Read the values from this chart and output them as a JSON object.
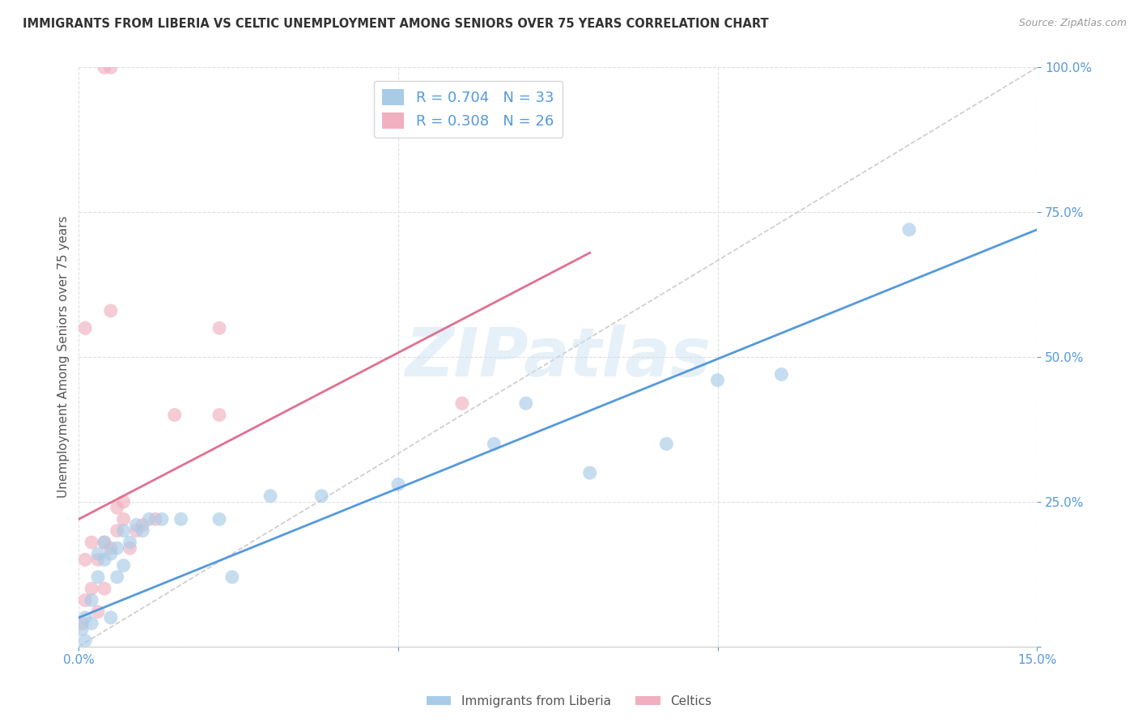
{
  "title": "IMMIGRANTS FROM LIBERIA VS CELTIC UNEMPLOYMENT AMONG SENIORS OVER 75 YEARS CORRELATION CHART",
  "source": "Source: ZipAtlas.com",
  "ylabel": "Unemployment Among Seniors over 75 years",
  "legend_label_blue": "Immigrants from Liberia",
  "legend_label_pink": "Celtics",
  "R_blue": 0.704,
  "N_blue": 33,
  "R_pink": 0.308,
  "N_pink": 26,
  "xlim": [
    0,
    0.15
  ],
  "ylim": [
    0,
    1.0
  ],
  "xticks": [
    0.0,
    0.05,
    0.1,
    0.15
  ],
  "yticks": [
    0.0,
    0.25,
    0.5,
    0.75,
    1.0
  ],
  "color_blue": "#a8cce8",
  "color_pink": "#f0b0c0",
  "line_color_blue": "#5599dd",
  "line_color_pink": "#e07090",
  "watermark": "ZIPatlas",
  "blue_x": [
    0.0005,
    0.001,
    0.001,
    0.002,
    0.002,
    0.003,
    0.003,
    0.004,
    0.004,
    0.005,
    0.005,
    0.006,
    0.006,
    0.007,
    0.007,
    0.008,
    0.009,
    0.01,
    0.011,
    0.013,
    0.016,
    0.022,
    0.024,
    0.03,
    0.038,
    0.05,
    0.065,
    0.07,
    0.08,
    0.092,
    0.1,
    0.11,
    0.13
  ],
  "blue_y": [
    0.03,
    0.01,
    0.05,
    0.04,
    0.08,
    0.12,
    0.16,
    0.15,
    0.18,
    0.05,
    0.16,
    0.12,
    0.17,
    0.14,
    0.2,
    0.18,
    0.21,
    0.2,
    0.22,
    0.22,
    0.22,
    0.22,
    0.12,
    0.26,
    0.26,
    0.28,
    0.35,
    0.42,
    0.3,
    0.35,
    0.46,
    0.47,
    0.72
  ],
  "pink_x": [
    0.0005,
    0.001,
    0.001,
    0.002,
    0.002,
    0.003,
    0.003,
    0.004,
    0.004,
    0.005,
    0.006,
    0.006,
    0.007,
    0.007,
    0.008,
    0.009,
    0.01,
    0.012,
    0.015,
    0.022,
    0.022,
    0.06,
    0.004,
    0.005,
    0.005,
    0.001
  ],
  "pink_y": [
    0.04,
    0.08,
    0.15,
    0.1,
    0.18,
    0.06,
    0.15,
    0.1,
    0.18,
    0.17,
    0.2,
    0.24,
    0.22,
    0.25,
    0.17,
    0.2,
    0.21,
    0.22,
    0.4,
    0.4,
    0.55,
    0.42,
    1.0,
    1.0,
    0.58,
    0.55
  ],
  "blue_line_x0": 0.0,
  "blue_line_y0": 0.05,
  "blue_line_x1": 0.15,
  "blue_line_y1": 0.72,
  "pink_line_x0": 0.0,
  "pink_line_y0": 0.22,
  "pink_line_x1": 0.08,
  "pink_line_y1": 0.68
}
